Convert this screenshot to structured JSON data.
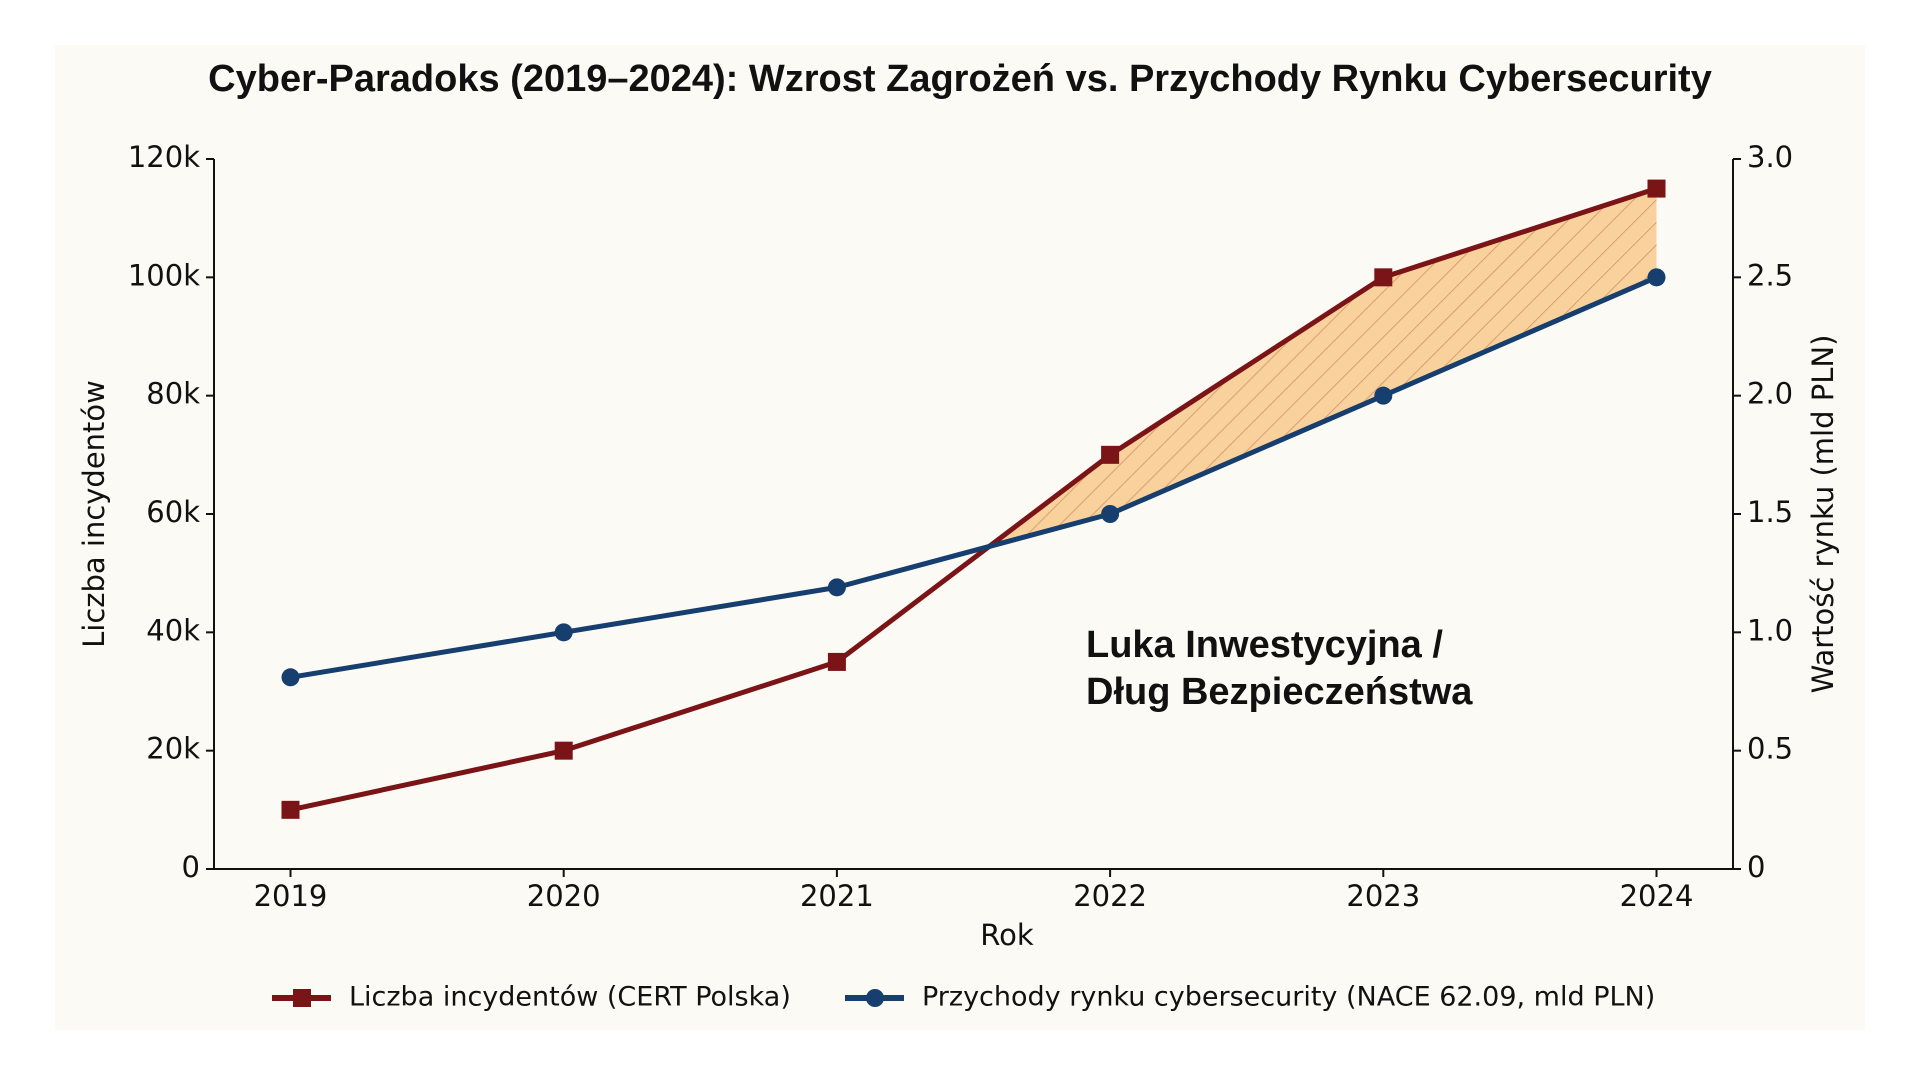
{
  "chart_data": {
    "type": "line",
    "title": "Cyber-Paradoks (2019–2024): Wzrost Zagrożeń vs. Przychody Rynku Cybersecurity",
    "xlabel": "Rok",
    "ylabel": "Liczba incydentów",
    "y2label": "Wartość rynku (mld PLN)",
    "x": [
      2019,
      2020,
      2021,
      2022,
      2023,
      2024
    ],
    "xlim": [
      2018.72,
      2024.28
    ],
    "xticks": [
      2019,
      2020,
      2021,
      2022,
      2023,
      2024
    ],
    "ylim": [
      0,
      120000
    ],
    "yticks": [
      0,
      {
        "value": 20000,
        "label": "20k"
      },
      {
        "value": 40000,
        "label": "40k"
      },
      {
        "value": 60000,
        "label": "60k"
      },
      {
        "value": 80000,
        "label": "80k"
      },
      {
        "value": 100000,
        "label": "100k"
      },
      {
        "value": 120000,
        "label": "120k"
      }
    ],
    "y2lim": [
      0,
      3.0
    ],
    "y2ticks": [
      0,
      0.5,
      {
        "value": 1.0,
        "label": "1.0"
      },
      1.5,
      {
        "value": 2.0,
        "label": "2.0"
      },
      2.5,
      {
        "value": 3.0,
        "label": "3.0"
      }
    ],
    "series": [
      {
        "name": "Liczba incydentów (CERT Polska)",
        "color": "#7b1416",
        "marker": "square",
        "values": [
          10000,
          20000,
          35000,
          70000,
          100000,
          115000
        ]
      },
      {
        "name": "Przychody rynku cybersecurity (NACE 62.09, mld PLN)",
        "color": "#163e6e",
        "marker": "circle",
        "axis": "y2",
        "values": [
          0.81,
          1.0,
          1.19,
          1.5,
          2.0,
          2.5
        ]
      }
    ],
    "fill_between": {
      "color": "#f8c98c",
      "hatch_color": "#c98a5c"
    },
    "annotation": [
      "Luka Inwestycyjna /",
      "Dług Bezpieczeństwa"
    ],
    "legend": "bottom",
    "grid": false
  }
}
